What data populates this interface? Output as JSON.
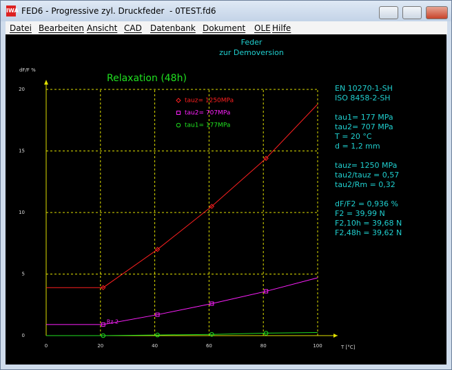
{
  "window": {
    "title": "FED6 - Progressive zyl. Druckfeder  - 0TEST.fd6"
  },
  "menu": [
    "Datei",
    "Bearbeiten",
    "Ansicht",
    "CAD",
    "Datenbank",
    "Dokument",
    "OLE",
    "Hilfe"
  ],
  "header": [
    "Feder",
    "zur Demoversion"
  ],
  "info": [
    [
      "EN 10270-1-SH",
      "ISO 8458-2-SH"
    ],
    [
      "tau1=  177 MPa",
      "tau2=  707 MPa",
      "T = 20 °C",
      "d = 1,2 mm"
    ],
    [
      "tauz= 1250 MPa",
      "tau2/tauz = 0,57",
      "tau2/Rm = 0,32"
    ],
    [
      "dF/F2 = 0,936 %",
      "F2 = 39,99 N",
      "F2,10h = 39,68 N",
      "F2,48h = 39,62 N"
    ]
  ],
  "chart_data": {
    "type": "line",
    "title": "Relaxation (48h)",
    "y_label": "dF/F %",
    "x_label": "T [°C]",
    "xlim": [
      0,
      100
    ],
    "ylim": [
      0,
      20
    ],
    "xticks": [
      0,
      20,
      40,
      60,
      80,
      100
    ],
    "yticks": [
      0,
      5,
      10,
      15,
      20
    ],
    "grid": true,
    "x": [
      0,
      21,
      41,
      61,
      81,
      100
    ],
    "series": [
      {
        "name": "tauz= 1250MPa",
        "color": "#ff2020",
        "marker": "diamond",
        "values": [
          3.9,
          3.9,
          7.0,
          10.5,
          14.4,
          18.8
        ],
        "markers": {
          "x": [
            21,
            41,
            61,
            81
          ],
          "values": [
            3.9,
            7.0,
            10.5,
            14.4
          ]
        }
      },
      {
        "name": "tau2= 707MPa",
        "color": "#ff20ff",
        "marker": "square",
        "values": [
          0.9,
          0.9,
          1.7,
          2.6,
          3.6,
          4.7
        ],
        "markers": {
          "x": [
            21,
            41,
            61,
            81
          ],
          "values": [
            0.9,
            1.7,
            2.6,
            3.6
          ]
        }
      },
      {
        "name": "tau1= 177MPa",
        "color": "#20e020",
        "marker": "circle",
        "values": [
          0.0,
          0.0,
          0.05,
          0.1,
          0.2,
          0.25
        ],
        "markers": {
          "x": [
            21,
            41,
            61,
            81
          ],
          "values": [
            0.0,
            0.05,
            0.1,
            0.2
          ]
        }
      }
    ],
    "annotation": {
      "text": "Rz 2",
      "color": "#ff20ff"
    }
  }
}
